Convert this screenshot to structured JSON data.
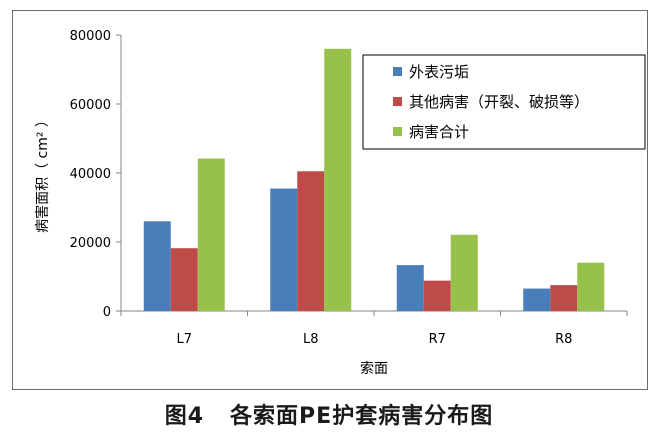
{
  "caption": "图4   各索面PE护套病害分布图",
  "chart_data": {
    "type": "bar",
    "categories": [
      "L7",
      "L8",
      "R7",
      "R8"
    ],
    "series": [
      {
        "name": "外表污垢",
        "color": "#4a7ebb",
        "values": [
          26000,
          35500,
          13300,
          6500
        ]
      },
      {
        "name": "其他病害（开裂、破损等）",
        "color": "#be4b48",
        "values": [
          18200,
          40500,
          8800,
          7500
        ]
      },
      {
        "name": "病害合计",
        "color": "#98c14c",
        "values": [
          44200,
          76000,
          22100,
          14000
        ]
      }
    ],
    "xlabel": "索面",
    "ylabel": "病害面积（ cm² ）",
    "ylim": [
      0,
      80000
    ],
    "yticks": [
      0,
      20000,
      40000,
      60000,
      80000
    ],
    "grid": false,
    "legend_position": "top-right"
  }
}
